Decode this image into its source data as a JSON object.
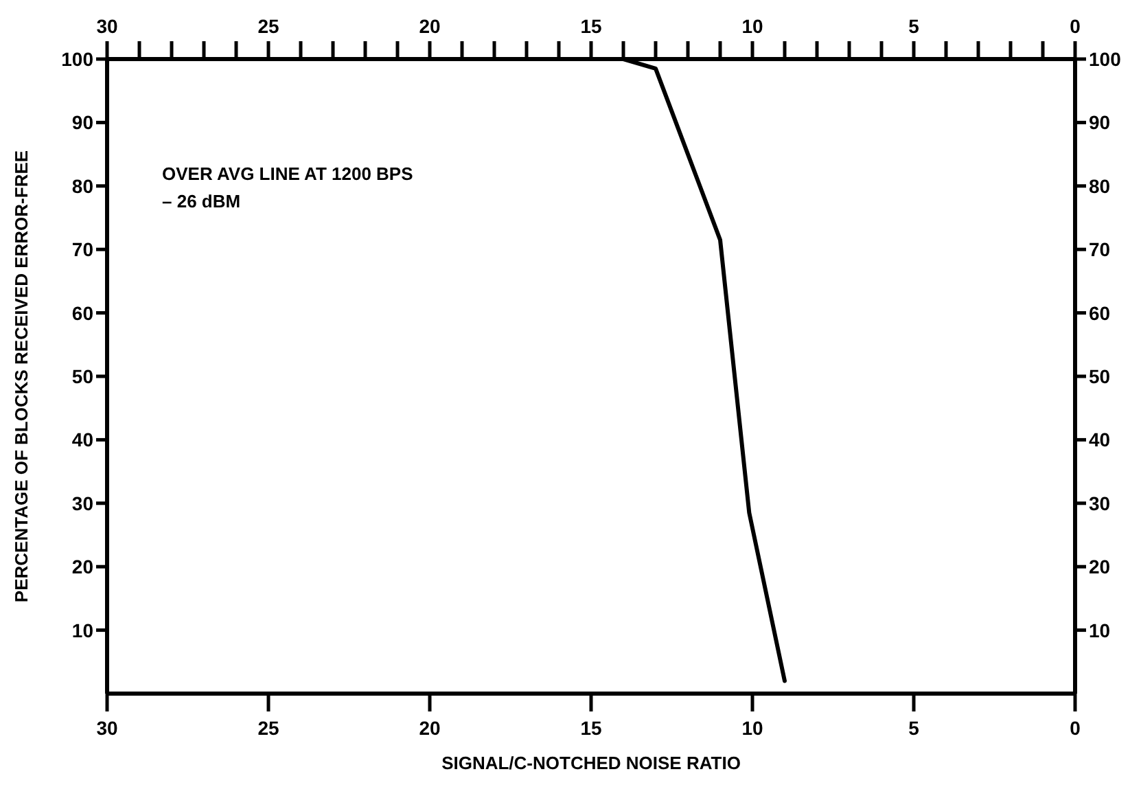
{
  "chart_data": {
    "type": "line",
    "xlabel": "SIGNAL/C-NOTCHED NOISE RATIO",
    "ylabel": "PERCENTAGE OF BLOCKS RECEIVED ERROR-FREE",
    "annotations": [
      "OVER AVG LINE AT 1200 BPS",
      "– 26 dBM"
    ],
    "series": [
      {
        "color": "#000000",
        "x": [
          14.0,
          13.0,
          12.0,
          11.0,
          10.1,
          9.0
        ],
        "values": [
          100,
          98.5,
          85,
          71.5,
          28.5,
          2
        ]
      }
    ],
    "xlim": [
      30,
      0
    ],
    "xticks": [
      30,
      25,
      20,
      15,
      10,
      5,
      0
    ],
    "x2lim": [
      30,
      0
    ],
    "x2ticks": [
      30,
      {
        "value": 29,
        "label": null
      },
      {
        "value": 28,
        "label": null
      },
      {
        "value": 27,
        "label": null
      },
      {
        "value": 26,
        "label": null
      },
      25,
      {
        "value": 24,
        "label": null
      },
      {
        "value": 23,
        "label": null
      },
      {
        "value": 22,
        "label": null
      },
      {
        "value": 21,
        "label": null
      },
      20,
      {
        "value": 19,
        "label": null
      },
      {
        "value": 18,
        "label": null
      },
      {
        "value": 17,
        "label": null
      },
      {
        "value": 16,
        "label": null
      },
      15,
      {
        "value": 14,
        "label": null
      },
      {
        "value": 13,
        "label": null
      },
      {
        "value": 12,
        "label": null
      },
      {
        "value": 11,
        "label": null
      },
      10,
      {
        "value": 9,
        "label": null
      },
      {
        "value": 8,
        "label": null
      },
      {
        "value": 7,
        "label": null
      },
      {
        "value": 6,
        "label": null
      },
      5,
      {
        "value": 4,
        "label": null
      },
      {
        "value": 3,
        "label": null
      },
      {
        "value": 2,
        "label": null
      },
      {
        "value": 1,
        "label": null
      },
      0
    ],
    "ylim": [
      0,
      100
    ],
    "yticks": [
      10,
      20,
      30,
      40,
      50,
      60,
      70,
      80,
      90,
      100
    ],
    "y2lim": [
      0,
      100
    ],
    "y2ticks": [
      10,
      20,
      30,
      40,
      50,
      60,
      70,
      80,
      90,
      100
    ],
    "grid": false,
    "marker": "none",
    "line_style": "solid"
  }
}
